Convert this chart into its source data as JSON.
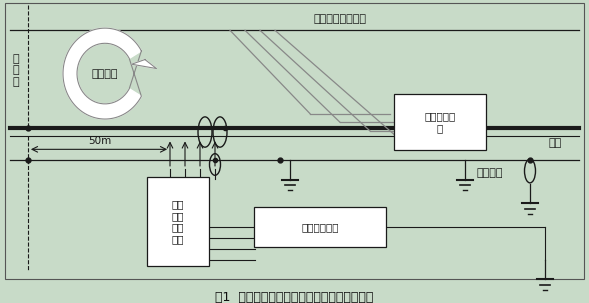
{
  "bg_color": "#c8dbc8",
  "title": "图1  综合接地和电磁兼容短路试验方案示意图",
  "label_short_point": "短\n路\n点",
  "label_short_current": "短路电流",
  "label_contact_wire": "接触导线或正馈线",
  "label_rail": "钢轨",
  "label_through_ground": "贯通地线",
  "label_traction_current": "牵引回流测\n量",
  "label_transient": "瞬时\n电压\n波形\n测量",
  "label_ground_potential": "对地电位测量",
  "label_50m": "50m",
  "line_color": "#1a1a1a",
  "box_fill": "#ffffff",
  "rail_color": "#1a1a1a",
  "arrow_gray": "#888888"
}
